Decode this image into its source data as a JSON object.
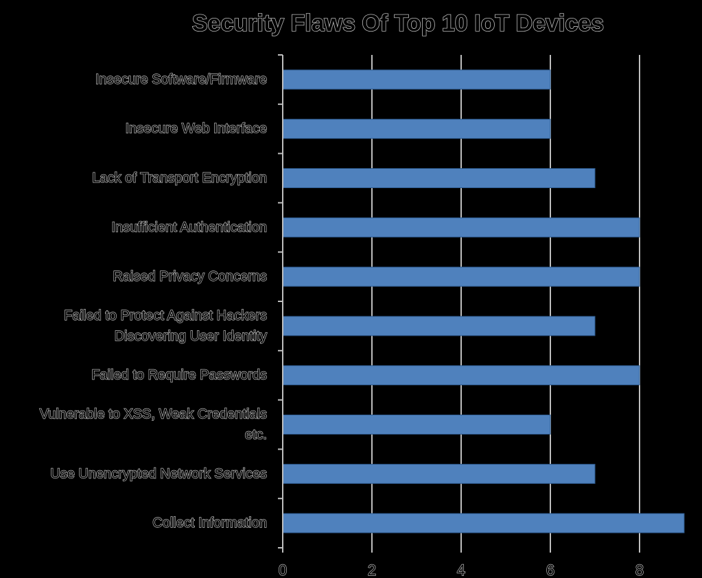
{
  "chart_data": {
    "type": "bar",
    "orientation": "horizontal",
    "title": "Security Flaws Of Top 10 IoT Devices",
    "categories": [
      "Insecure Software/Firmware",
      "Insecure Web Interface",
      "Lack of Transport Encryption",
      "Insufficient Authentication",
      "Raised Privacy Concerns",
      "Failed to Protect Against Hackers Discovering User Identity",
      "Failed to Require Passwords",
      "Vulnerable to XSS, Weak Credentials etc.",
      "Use Unencrypted Network Services",
      "Collect Information"
    ],
    "category_lines": [
      [
        "Insecure Software/Firmware"
      ],
      [
        "Insecure Web Interface"
      ],
      [
        "Lack of Transport Encryption"
      ],
      [
        "Insufficient Authentication"
      ],
      [
        "Raised Privacy Concerns"
      ],
      [
        "Failed to Protect Against Hackers",
        "Discovering User Identity"
      ],
      [
        "Failed to Require Passwords"
      ],
      [
        "Vulnerable to XSS, Weak Credentials",
        "etc."
      ],
      [
        "Use Unencrypted Network Services"
      ],
      [
        "Collect Information"
      ]
    ],
    "values": [
      6,
      6,
      7,
      8,
      8,
      7,
      8,
      6,
      7,
      9
    ],
    "xticks": [
      0,
      2,
      4,
      6,
      8
    ],
    "xlim": [
      0,
      9
    ],
    "grid": "vertical",
    "legend": "none",
    "colors": {
      "bar": "#4f81bd",
      "bar_edge": "#2e5b8f",
      "grid": "#bfbfbf",
      "axis": "#bfbfbf",
      "background": "#000000"
    }
  }
}
